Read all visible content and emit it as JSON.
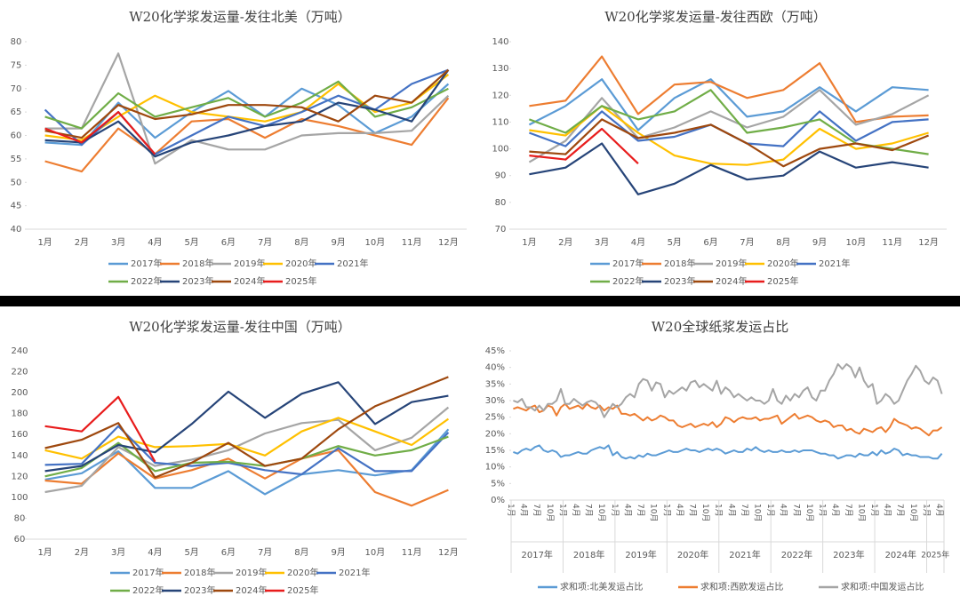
{
  "chart_data": [
    {
      "type": "line",
      "title": "W20化学浆发运量-发往北美（万吨）",
      "categories": [
        "1月",
        "2月",
        "3月",
        "4月",
        "5月",
        "6月",
        "7月",
        "8月",
        "9月",
        "10月",
        "11月",
        "12月"
      ],
      "ylim": [
        40,
        80
      ],
      "yticks": [
        40,
        45,
        50,
        55,
        60,
        65,
        70,
        75,
        80
      ],
      "series": [
        {
          "name": "2017年",
          "color": "#5b9bd5",
          "values": [
            58.5,
            58,
            67,
            59.5,
            65,
            69.5,
            64,
            70,
            66.5,
            60.5,
            64,
            71
          ]
        },
        {
          "name": "2018年",
          "color": "#ed7d31",
          "values": [
            54.5,
            52.3,
            61.5,
            56,
            63,
            63.5,
            59.5,
            63.5,
            62,
            60,
            58,
            68
          ]
        },
        {
          "name": "2019年",
          "color": "#a5a5a5",
          "values": [
            61.5,
            61.5,
            77.5,
            54,
            59,
            57,
            57,
            60,
            60.5,
            60.5,
            61,
            68.5
          ]
        },
        {
          "name": "2020年",
          "color": "#ffc000",
          "values": [
            60,
            59,
            64,
            68.5,
            65,
            64,
            63,
            65,
            71,
            65,
            67,
            73
          ]
        },
        {
          "name": "2021年",
          "color": "#4472c4",
          "values": [
            65.5,
            58,
            65,
            56,
            60,
            64,
            62,
            65,
            68.5,
            65.5,
            71,
            74
          ]
        },
        {
          "name": "2022年",
          "color": "#70ad47",
          "values": [
            64,
            61.5,
            69,
            64,
            66,
            68,
            64,
            67,
            71.5,
            64,
            66,
            70
          ]
        },
        {
          "name": "2023年",
          "color": "#264478",
          "values": [
            59,
            58.5,
            63,
            55.5,
            58.5,
            60,
            62,
            63,
            67,
            65.5,
            63,
            74
          ]
        },
        {
          "name": "2024年",
          "color": "#9e480e",
          "values": [
            61,
            59.5,
            66.5,
            63.5,
            64.5,
            66.5,
            66.5,
            66,
            63,
            68.5,
            67,
            74
          ]
        },
        {
          "name": "2025年",
          "color": "#e81c1c",
          "values": [
            61.5,
            58.5,
            65,
            56,
            null,
            null,
            null,
            null,
            null,
            null,
            null,
            null
          ]
        }
      ]
    },
    {
      "type": "line",
      "title": "W20化学浆发运量-发往西欧（万吨）",
      "categories": [
        "1月",
        "2月",
        "3月",
        "4月",
        "5月",
        "6月",
        "7月",
        "8月",
        "9月",
        "10月",
        "11月",
        "12月"
      ],
      "ylim": [
        70,
        140
      ],
      "yticks": [
        70,
        80,
        90,
        100,
        110,
        120,
        130,
        140
      ],
      "series": [
        {
          "name": "2017年",
          "color": "#5b9bd5",
          "values": [
            109,
            116,
            126,
            107,
            119,
            126,
            112,
            114,
            123,
            114,
            123,
            122
          ]
        },
        {
          "name": "2018年",
          "color": "#ed7d31",
          "values": [
            116,
            118,
            134.5,
            113,
            124,
            125,
            119,
            122,
            132,
            110,
            112,
            112.5
          ]
        },
        {
          "name": "2019年",
          "color": "#a5a5a5",
          "values": [
            95,
            103,
            119,
            104,
            108,
            114,
            108,
            112,
            122,
            109,
            113,
            120
          ]
        },
        {
          "name": "2020年",
          "color": "#ffc000",
          "values": [
            107,
            105,
            116,
            106,
            97.5,
            94.5,
            94,
            96,
            107.5,
            100,
            102,
            106
          ]
        },
        {
          "name": "2021年",
          "color": "#4472c4",
          "values": [
            106,
            101,
            114,
            103,
            104.5,
            109,
            102,
            101,
            114,
            103,
            110,
            111
          ]
        },
        {
          "name": "2022年",
          "color": "#70ad47",
          "values": [
            111,
            106,
            116,
            111,
            114,
            122,
            106,
            108,
            111,
            102,
            100,
            98
          ]
        },
        {
          "name": "2023年",
          "color": "#264478",
          "values": [
            90.5,
            93,
            102,
            83,
            87,
            94,
            88.5,
            90,
            99,
            93,
            95,
            93
          ]
        },
        {
          "name": "2024年",
          "color": "#9e480e",
          "values": [
            99,
            98,
            111,
            104,
            106,
            109,
            102,
            93.5,
            100,
            102,
            99.5,
            105
          ]
        },
        {
          "name": "2025年",
          "color": "#e81c1c",
          "values": [
            97.5,
            96,
            107.5,
            94.5,
            null,
            null,
            null,
            null,
            null,
            null,
            null,
            null
          ]
        }
      ]
    },
    {
      "type": "line",
      "title": "W20化学浆发运量-发往中国（万吨）",
      "categories": [
        "1月",
        "2月",
        "3月",
        "4月",
        "5月",
        "6月",
        "7月",
        "8月",
        "9月",
        "10月",
        "11月",
        "12月"
      ],
      "ylim": [
        60,
        240
      ],
      "yticks": [
        60,
        80,
        100,
        120,
        140,
        160,
        180,
        200,
        220,
        240
      ],
      "series": [
        {
          "name": "2017年",
          "color": "#5b9bd5",
          "values": [
            117,
            123,
            144,
            109,
            109,
            125,
            103,
            122,
            126,
            121,
            126,
            165
          ]
        },
        {
          "name": "2018年",
          "color": "#ed7d31",
          "values": [
            116,
            113,
            142,
            118,
            126,
            137,
            118,
            137,
            145,
            105,
            92,
            107
          ]
        },
        {
          "name": "2019年",
          "color": "#a5a5a5",
          "values": [
            105,
            111,
            148,
            130,
            136,
            145,
            161,
            171,
            174,
            145,
            157,
            186
          ]
        },
        {
          "name": "2020年",
          "color": "#ffc000",
          "values": [
            145,
            137,
            158,
            148,
            149,
            151,
            140,
            163,
            176,
            163,
            150,
            175
          ]
        },
        {
          "name": "2021年",
          "color": "#4472c4",
          "values": [
            131,
            132,
            168,
            133,
            130,
            133,
            126,
            122,
            147,
            125,
            125,
            162
          ]
        },
        {
          "name": "2022年",
          "color": "#70ad47",
          "values": [
            120,
            128,
            152,
            125,
            133,
            134,
            130,
            137,
            149,
            140,
            145,
            158
          ]
        },
        {
          "name": "2023年",
          "color": "#264478",
          "values": [
            125,
            130,
            150,
            143,
            170,
            201,
            176,
            199,
            210,
            170,
            191,
            197
          ]
        },
        {
          "name": "2024年",
          "color": "#9e480e",
          "values": [
            147,
            155,
            171,
            119,
            133,
            152,
            130,
            137,
            165,
            187,
            201,
            215
          ]
        },
        {
          "name": "2025年",
          "color": "#e81c1c",
          "values": [
            168,
            163,
            196,
            134,
            null,
            null,
            null,
            null,
            null,
            null,
            null,
            null
          ]
        }
      ]
    },
    {
      "type": "line",
      "title": "W20全球纸浆发运占比",
      "categories": [
        "1月",
        null,
        null,
        "4月",
        null,
        null,
        "7月",
        null,
        null,
        "10月",
        null,
        null,
        "1月",
        null,
        null,
        "4月",
        null,
        null,
        "7月",
        null,
        null,
        "10月",
        null,
        null,
        "1月",
        null,
        null,
        "4月",
        null,
        null,
        "7月",
        null,
        null,
        "10月",
        null,
        null,
        "1月",
        null,
        null,
        "4月",
        null,
        null,
        "7月",
        null,
        null,
        "10月",
        null,
        null,
        "1月",
        null,
        null,
        "4月",
        null,
        null,
        "7月",
        null,
        null,
        "10月",
        null,
        null,
        "1月",
        null,
        null,
        "4月",
        null,
        null,
        "7月",
        null,
        null,
        "10月",
        null,
        null,
        "1月",
        null,
        null,
        "4月",
        null,
        null,
        "7月",
        null,
        null,
        "10月",
        null,
        null,
        "1月",
        null,
        null,
        "4月",
        null,
        null,
        "7月",
        null,
        null,
        "10月",
        null,
        null,
        "1月",
        null,
        null,
        "4月"
      ],
      "year_groups": [
        "2017年",
        "2018年",
        "2019年",
        "2020年",
        "2021年",
        "2022年",
        "2023年",
        "2024年",
        "2025年"
      ],
      "ylim": [
        0,
        45
      ],
      "yticks": [
        {
          "value": 0,
          "label": "0%"
        },
        {
          "value": 5,
          "label": "5%"
        },
        {
          "value": 10,
          "label": "10%"
        },
        {
          "value": 15,
          "label": "15%"
        },
        {
          "value": 20,
          "label": "20%"
        },
        {
          "value": 25,
          "label": "25%"
        },
        {
          "value": 30,
          "label": "30%"
        },
        {
          "value": 35,
          "label": "35%"
        },
        {
          "value": 40,
          "label": "40%"
        },
        {
          "value": 45,
          "label": "45%"
        }
      ],
      "series": [
        {
          "name": "求和项:北美发运占比",
          "color": "#5b9bd5",
          "values": [
            14.5,
            14,
            15,
            15.5,
            15,
            16,
            16.5,
            15,
            14.5,
            15,
            14.5,
            13,
            13.5,
            13.5,
            14,
            14.5,
            14,
            14,
            15,
            15.5,
            16,
            15.5,
            16.5,
            13.5,
            14.5,
            13,
            12.5,
            13,
            12.5,
            13.5,
            13,
            14,
            13.5,
            13.5,
            14,
            14.5,
            15,
            14.5,
            14.5,
            15,
            15.5,
            15,
            15,
            14.5,
            15,
            15.5,
            15,
            15.5,
            15,
            14,
            14.5,
            15,
            14.5,
            14.5,
            15.5,
            15,
            16,
            15,
            14.5,
            15,
            14.5,
            14.5,
            15,
            14.5,
            14.5,
            15,
            14.5,
            15,
            15,
            15,
            14.5,
            14,
            14,
            13.5,
            13.5,
            12.5,
            13,
            13.5,
            13.5,
            13,
            14,
            13.5,
            13.5,
            14.5,
            13.5,
            15,
            14,
            14.5,
            15.5,
            15,
            13.5,
            14,
            13.5,
            13.5,
            13,
            13,
            13,
            12.5,
            12.5,
            14
          ]
        },
        {
          "name": "求和项:西欧发运占比",
          "color": "#ed7d31",
          "values": [
            27.5,
            28,
            27.5,
            27,
            28,
            28.5,
            26.5,
            27,
            28.5,
            28,
            25.5,
            28,
            29,
            27.5,
            28,
            28.5,
            27.5,
            29,
            28,
            27.5,
            28.5,
            27,
            28,
            27.5,
            28.5,
            26,
            26,
            25.5,
            26,
            25,
            24,
            25,
            24,
            24.5,
            25.5,
            25,
            24,
            24,
            22.5,
            22,
            22.5,
            23,
            22,
            22.5,
            23,
            22.5,
            23.5,
            22,
            23,
            25,
            24.5,
            23.5,
            24.5,
            25,
            24.5,
            24.5,
            25,
            24,
            24.5,
            24.5,
            25,
            25.5,
            23,
            24,
            25,
            26,
            24.5,
            25,
            25.5,
            25,
            24,
            23.5,
            24,
            23.5,
            22,
            22.5,
            22.5,
            21,
            21.5,
            20.5,
            20,
            21.5,
            21,
            20.5,
            21.5,
            22,
            20.5,
            22,
            24.5,
            23.5,
            23,
            22.5,
            21.5,
            22,
            21.5,
            20.5,
            19.5,
            21,
            21,
            22
          ]
        },
        {
          "name": "求和项:中国发运占比",
          "color": "#a5a5a5",
          "values": [
            30,
            29.5,
            30.5,
            28,
            28,
            27,
            28.5,
            27,
            29,
            29,
            30,
            33.5,
            29,
            29,
            30.5,
            29.5,
            28.5,
            29.5,
            30,
            29.5,
            28,
            25,
            27,
            29,
            28,
            29,
            31,
            32,
            31,
            35,
            36.5,
            36,
            33,
            35.5,
            35,
            31,
            33,
            32,
            33,
            34,
            33,
            35.5,
            36,
            34,
            35,
            34,
            33,
            36,
            32,
            34,
            33,
            31,
            32,
            31,
            30,
            31,
            30,
            30,
            29,
            30,
            33.5,
            30,
            29,
            31.5,
            30,
            32,
            31,
            33,
            34,
            31,
            30,
            33,
            33,
            36,
            38,
            41,
            39.5,
            41,
            40,
            37,
            40,
            36,
            34,
            35,
            29,
            30,
            32,
            31,
            29,
            30,
            33,
            36,
            38,
            40.5,
            39,
            36,
            35,
            37,
            36,
            32
          ]
        }
      ]
    }
  ]
}
